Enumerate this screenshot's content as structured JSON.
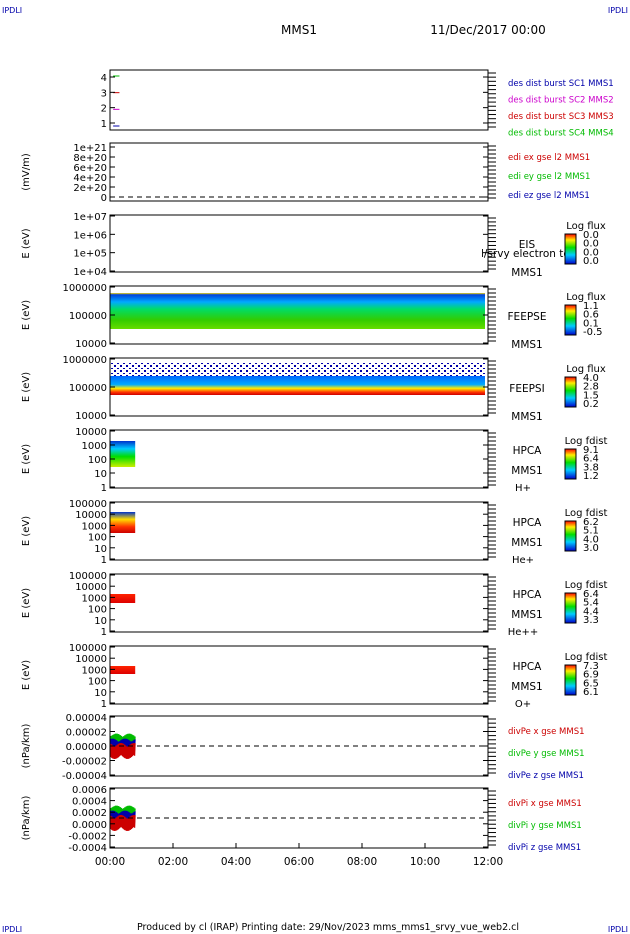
{
  "header": {
    "corner_tl": "IPDLI",
    "corner_tr": "IPDLI",
    "corner_bl": "IPDLI",
    "corner_br": "IPDLI",
    "title": "MMS1",
    "datetime": "11/Dec/2017 00:00"
  },
  "footer": {
    "text": "Produced by cl (IRAP)   Printing date: 29/Nov/2023   mms_mms1_srvy_vue_web2.cl"
  },
  "chart_data": {
    "type": "multi-panel time series / spectrogram",
    "x_ticks": [
      "00:00",
      "02:00",
      "04:00",
      "06:00",
      "08:00",
      "10:00",
      "12:00"
    ],
    "x_range_hours": [
      0,
      12
    ],
    "panels": [
      {
        "id": "burst",
        "ylabel": "",
        "yticks": [
          "4",
          "3",
          "2",
          "1"
        ],
        "legend": [
          {
            "text": "des dist burst SC1 MMS1",
            "color": "#0000aa"
          },
          {
            "text": "des dist burst SC2 MMS2",
            "color": "#cc00cc"
          },
          {
            "text": "des dist burst SC3 MMS3",
            "color": "#cc0000"
          },
          {
            "text": "des dist burst SC4 MMS4",
            "color": "#00bb00"
          }
        ],
        "marks": [
          {
            "sc": 4,
            "t_hours": [
              0.1,
              0.3
            ],
            "color": "#00bb00"
          },
          {
            "sc": 3,
            "t_hours": [
              0.1,
              0.3
            ],
            "color": "#cc0000"
          },
          {
            "sc": 2,
            "t_hours": [
              0.1,
              0.3
            ],
            "color": "#cc00cc"
          },
          {
            "sc": 1,
            "t_hours": [
              0.1,
              0.3
            ],
            "color": "#0000aa"
          }
        ]
      },
      {
        "id": "edi",
        "ylabel": "(mV/m)",
        "yticks": [
          "1e+21",
          "8e+20",
          "6e+20",
          "4e+20",
          "2e+20",
          "0"
        ],
        "zero_line": true,
        "legend": [
          {
            "text": "edi ex gse l2 MMS1",
            "color": "#cc0000"
          },
          {
            "text": "edi ey gse l2 MMS1",
            "color": "#00bb00"
          },
          {
            "text": "edi ez gse l2 MMS1",
            "color": "#0000aa"
          }
        ]
      },
      {
        "id": "eis",
        "ylabel": "E (eV)",
        "yticks": [
          "1e+07",
          "1e+06",
          "1e+05",
          "1e+04"
        ],
        "instrument": "EIS",
        "overlay": "l/srvy electron to",
        "sc_label": "MMS1",
        "colorbar_title": "Log flux",
        "colorbar_ticks": [
          "0.0",
          "0.0",
          "0.0",
          "0.0"
        ]
      },
      {
        "id": "feepse",
        "ylabel": "E (eV)",
        "yticks": [
          "1000000",
          "100000",
          "10000"
        ],
        "instrument": "FEEPSE",
        "sc_label": "MMS1",
        "colorbar_title": "Log flux",
        "colorbar_ticks": [
          "1.1",
          "0.6",
          "0.1",
          "-0.5"
        ],
        "t_hours": [
          0,
          12
        ]
      },
      {
        "id": "feepsi",
        "ylabel": "E (eV)",
        "yticks": [
          "1000000",
          "100000",
          "10000"
        ],
        "instrument": "FEEPSI",
        "sc_label": "MMS1",
        "colorbar_title": "Log flux",
        "colorbar_ticks": [
          "4.0",
          "2.8",
          "1.5",
          "0.2"
        ],
        "t_hours": [
          0,
          12
        ]
      },
      {
        "id": "hpca_h",
        "ylabel": "E (eV)",
        "yticks": [
          "10000",
          "1000",
          "100",
          "10",
          "1"
        ],
        "instrument": "HPCA",
        "sc_label": "MMS1",
        "species": "H+",
        "colorbar_title": "Log fdist",
        "colorbar_ticks": [
          "9.1",
          "6.4",
          "3.8",
          "1.2"
        ],
        "t_hours": [
          0,
          0.8
        ]
      },
      {
        "id": "hpca_he",
        "ylabel": "E (eV)",
        "yticks": [
          "100000",
          "10000",
          "1000",
          "100",
          "10",
          "1"
        ],
        "instrument": "HPCA",
        "sc_label": "MMS1",
        "species": "He+",
        "colorbar_title": "Log fdist",
        "colorbar_ticks": [
          "6.2",
          "5.1",
          "4.0",
          "3.0"
        ],
        "t_hours": [
          0,
          0.8
        ]
      },
      {
        "id": "hpca_he2",
        "ylabel": "E (eV)",
        "yticks": [
          "100000",
          "10000",
          "1000",
          "100",
          "10",
          "1"
        ],
        "instrument": "HPCA",
        "sc_label": "MMS1",
        "species": "He++",
        "colorbar_title": "Log fdist",
        "colorbar_ticks": [
          "6.4",
          "5.4",
          "4.4",
          "3.3"
        ],
        "t_hours": [
          0,
          0.8
        ]
      },
      {
        "id": "hpca_o",
        "ylabel": "E (eV)",
        "yticks": [
          "100000",
          "10000",
          "1000",
          "100",
          "10",
          "1"
        ],
        "instrument": "HPCA",
        "sc_label": "MMS1",
        "species": "O+",
        "colorbar_title": "Log fdist",
        "colorbar_ticks": [
          "7.3",
          "6.9",
          "6.5",
          "6.1"
        ],
        "t_hours": [
          0,
          0.8
        ]
      },
      {
        "id": "divpe",
        "ylabel": "(nPa/km)",
        "yticks": [
          "0.00004",
          "0.00002",
          "0.00000",
          "-0.00002",
          "-0.00004"
        ],
        "zero_line": true,
        "legend": [
          {
            "text": "divPe x gse MMS1",
            "color": "#cc0000"
          },
          {
            "text": "divPe y gse MMS1",
            "color": "#00bb00"
          },
          {
            "text": "divPe z gse MMS1",
            "color": "#0000aa"
          }
        ],
        "t_hours": [
          0,
          0.8
        ]
      },
      {
        "id": "divpi",
        "ylabel": "(nPa/km)",
        "yticks": [
          "0.0006",
          "0.0004",
          "0.0002",
          "0.0000",
          "-0.0002",
          "-0.0004"
        ],
        "zero_line": true,
        "legend": [
          {
            "text": "divPi x gse MMS1",
            "color": "#cc0000"
          },
          {
            "text": "divPi y gse MMS1",
            "color": "#00bb00"
          },
          {
            "text": "divPi z gse MMS1",
            "color": "#0000aa"
          }
        ],
        "t_hours": [
          0,
          0.8
        ]
      }
    ]
  }
}
